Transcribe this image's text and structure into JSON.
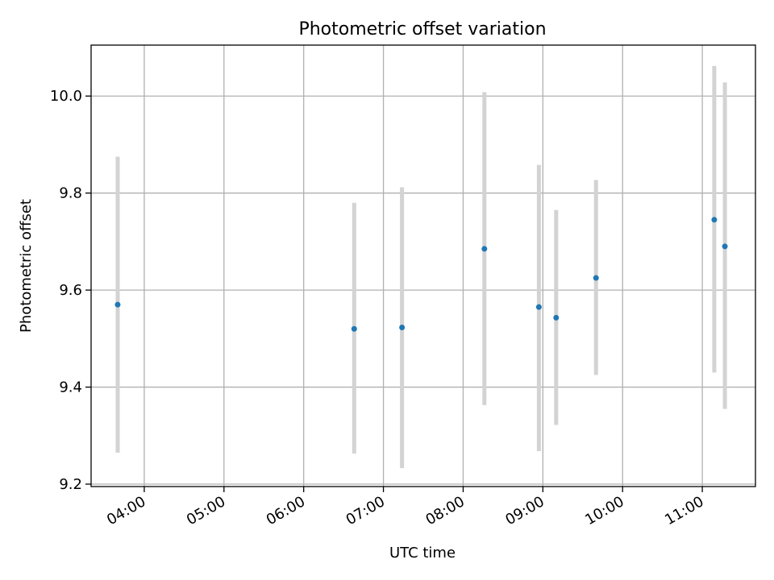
{
  "chart_data": {
    "type": "scatter",
    "title": "Photometric offset variation",
    "xlabel": "UTC time",
    "ylabel": "Photometric offset",
    "xlim": [
      "03:20",
      "11:40"
    ],
    "ylim": [
      9.195,
      10.105
    ],
    "xticks": [
      "04:00",
      "05:00",
      "06:00",
      "07:00",
      "08:00",
      "09:00",
      "10:00",
      "11:00"
    ],
    "yticks": [
      "9.2",
      "9.4",
      "9.6",
      "9.8",
      "10.0"
    ],
    "grid": true,
    "colors": {
      "point": "#1f77b4",
      "errorbar": "#d3d3d3",
      "grid": "#b0b0b0"
    },
    "points": [
      {
        "x": "03:40",
        "y": 9.57,
        "ymin": 9.265,
        "ymax": 9.875
      },
      {
        "x": "06:38",
        "y": 9.52,
        "ymin": 9.263,
        "ymax": 9.78
      },
      {
        "x": "07:14",
        "y": 9.523,
        "ymin": 9.233,
        "ymax": 9.812
      },
      {
        "x": "08:16",
        "y": 9.685,
        "ymin": 9.363,
        "ymax": 10.008
      },
      {
        "x": "08:57",
        "y": 9.565,
        "ymin": 9.268,
        "ymax": 9.858
      },
      {
        "x": "09:10",
        "y": 9.543,
        "ymin": 9.322,
        "ymax": 9.765
      },
      {
        "x": "09:40",
        "y": 9.625,
        "ymin": 9.425,
        "ymax": 9.827
      },
      {
        "x": "11:09",
        "y": 9.745,
        "ymin": 9.43,
        "ymax": 10.062
      },
      {
        "x": "11:17",
        "y": 9.69,
        "ymin": 9.355,
        "ymax": 10.028
      }
    ]
  }
}
